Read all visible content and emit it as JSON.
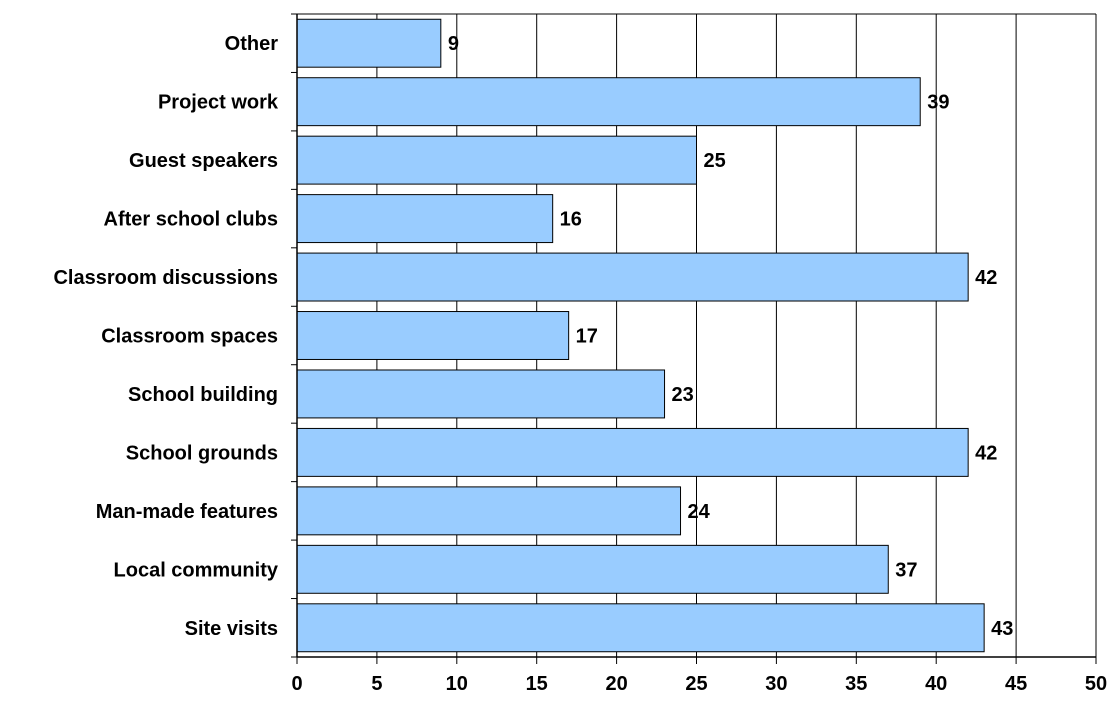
{
  "chart_data": {
    "type": "bar",
    "orientation": "horizontal",
    "categories": [
      "Other",
      "Project work",
      "Guest speakers",
      "After school clubs",
      "Classroom discussions",
      "Classroom spaces",
      "School building",
      "School grounds",
      "Man-made features",
      "Local community",
      "Site visits"
    ],
    "values": [
      9,
      39,
      25,
      16,
      42,
      17,
      23,
      42,
      24,
      37,
      43
    ],
    "title": "",
    "xlabel": "",
    "ylabel": "",
    "xlim": [
      0,
      50
    ],
    "xticks": [
      0,
      5,
      10,
      15,
      20,
      25,
      30,
      35,
      40,
      45,
      50
    ],
    "grid": "vertical",
    "legend": "none",
    "colors": {
      "bar_fill": "#99ccff",
      "bar_stroke": "#000000",
      "grid": "#000000",
      "axis": "#000000",
      "background": "#ffffff"
    }
  }
}
